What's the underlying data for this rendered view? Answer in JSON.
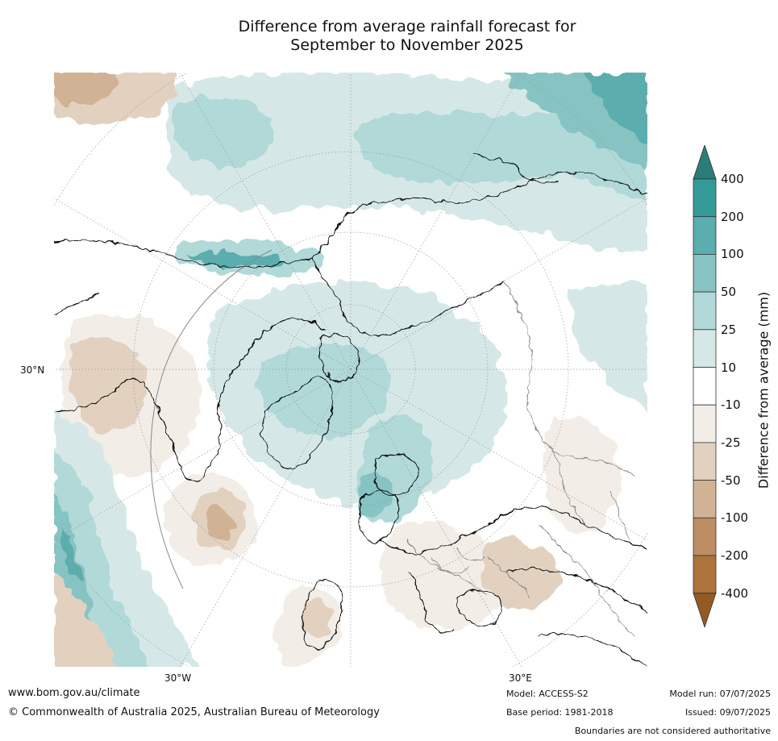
{
  "title": {
    "line1": "Difference from average rainfall forecast for",
    "line2": "September to November 2025"
  },
  "map": {
    "projection": "north-polar-stereographic",
    "labels": {
      "lat_30n": "30°N",
      "lon_30w": "30°W",
      "lon_30e": "30°E"
    },
    "colors": {
      "coastline": "#000000",
      "borders": "#808080",
      "graticule": "#9a9a9a"
    }
  },
  "legend": {
    "title": "Difference from average (mm)",
    "ticks": [
      "400",
      "200",
      "100",
      "50",
      "25",
      "10",
      "-10",
      "-25",
      "-50",
      "-100",
      "-200",
      "-400"
    ],
    "colors": [
      "#2b7d77",
      "#329b98",
      "#5cadad",
      "#86c3c2",
      "#b0d9d8",
      "#d5e8e7",
      "#ffffff",
      "#f2ede6",
      "#e3d1c0",
      "#d0b394",
      "#bd8e63",
      "#ac733d",
      "#935b23"
    ]
  },
  "footer": {
    "url": "www.bom.gov.au/climate",
    "copyright": "© Commonwealth of Australia 2025, Australian Bureau of Meteorology",
    "model": "Model: ACCESS-S2",
    "base_period": "Base period: 1981-2018",
    "model_run": "Model run: 07/07/2025",
    "issued": "Issued: 09/07/2025",
    "boundaries_note": "Boundaries are not considered authoritative"
  }
}
